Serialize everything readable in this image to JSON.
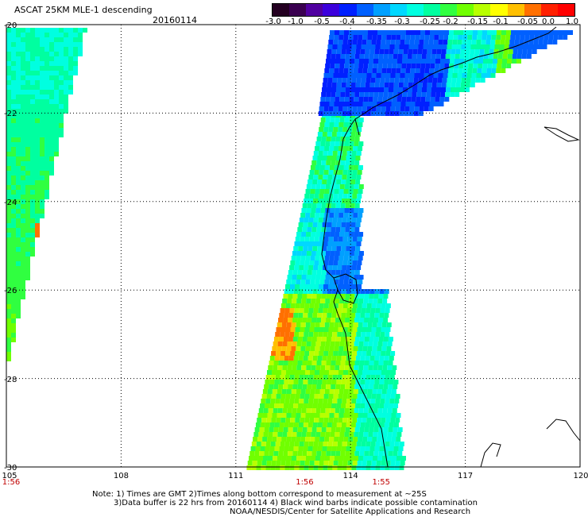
{
  "header": {
    "title": "ASCAT 25KM MLE-1 descending",
    "date": "20160114"
  },
  "colorbar": {
    "labels": [
      "-3.0",
      "-1.0",
      "-0.5",
      "-0.4",
      "-0.35",
      "-0.3",
      "-0.25",
      "-0.2",
      "-0.15",
      "-0.1",
      "-0.05",
      "0.0",
      "1.0"
    ],
    "colors": [
      "#240021",
      "#3a0050",
      "#5000a0",
      "#3c00dc",
      "#0020ff",
      "#0060ff",
      "#00a0ff",
      "#00d8ff",
      "#00ffe0",
      "#00ffa0",
      "#30ff40",
      "#70ff00",
      "#b8ff00",
      "#ffff00",
      "#ffc000",
      "#ff7000",
      "#ff2000",
      "#ff0000"
    ]
  },
  "axes": {
    "lat_labels": [
      "-20",
      "-22",
      "-24",
      "-26",
      "-28",
      "-30"
    ],
    "lon_labels": [
      "105",
      "108",
      "111",
      "114",
      "117",
      "120"
    ],
    "lat_range": [
      -30,
      -20
    ],
    "lon_range": [
      105,
      120
    ],
    "grid": "dotted"
  },
  "time_labels": [
    {
      "text": "1:56",
      "lon": 105
    },
    {
      "text": "1:56",
      "lon": 112.8
    },
    {
      "text": "1:55",
      "lon": 114.8
    }
  ],
  "notes": {
    "line1": "Note: 1) Times are GMT 2)Times along bottom correspond to measurement at ~25S",
    "line2": "3)Data buffer is 22 hrs from 20160114 4) Black wind barbs indicate possible contamination",
    "line3": "NOAA/NESDIS/Center for Satellite Applications and Research"
  }
}
